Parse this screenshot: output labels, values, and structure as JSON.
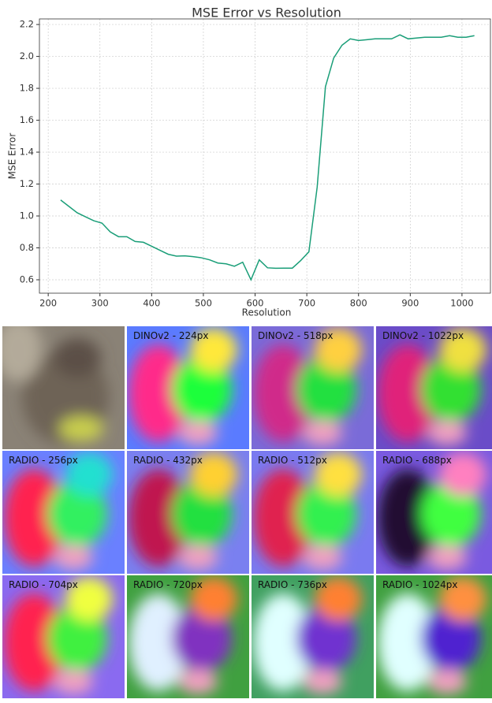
{
  "chart_data": {
    "type": "line",
    "title": "MSE Error vs Resolution",
    "x_label": "Resolution",
    "y_label": "MSE Error",
    "x": [
      224,
      240,
      256,
      272,
      288,
      304,
      320,
      336,
      352,
      368,
      384,
      400,
      416,
      432,
      448,
      464,
      480,
      496,
      512,
      528,
      544,
      560,
      576,
      592,
      608,
      624,
      640,
      656,
      672,
      688,
      704,
      720,
      736,
      752,
      768,
      784,
      800,
      816,
      832,
      848,
      864,
      880,
      896,
      912,
      928,
      944,
      960,
      976,
      992,
      1008,
      1024
    ],
    "series": [
      {
        "name": "MSE Error",
        "color": "#1a9e78",
        "values": [
          1.1,
          1.06,
          1.02,
          0.995,
          0.97,
          0.955,
          0.9,
          0.87,
          0.87,
          0.84,
          0.835,
          0.81,
          0.785,
          0.76,
          0.748,
          0.75,
          0.745,
          0.738,
          0.725,
          0.705,
          0.7,
          0.685,
          0.71,
          0.6,
          0.725,
          0.675,
          0.672,
          0.673,
          0.673,
          0.72,
          0.775,
          1.18,
          1.81,
          1.99,
          2.07,
          2.11,
          2.1,
          2.105,
          2.11,
          2.11,
          2.11,
          2.135,
          2.11,
          2.115,
          2.12,
          2.12,
          2.12,
          2.13,
          2.12,
          2.12,
          2.13
        ]
      }
    ],
    "xlim": [
      183,
      1055
    ],
    "ylim": [
      0.516,
      2.235
    ],
    "xticks": [
      200,
      300,
      400,
      500,
      600,
      700,
      800,
      900,
      1000
    ],
    "yticks": [
      {
        "value": 0.6,
        "label": "0.6"
      },
      {
        "value": 0.8,
        "label": "0.8"
      },
      {
        "value": 1.0,
        "label": "1.0"
      },
      {
        "value": 1.2,
        "label": "1.2"
      },
      {
        "value": 1.4,
        "label": "1.4"
      },
      {
        "value": 1.6,
        "label": "1.6"
      },
      {
        "value": 1.8,
        "label": "1.8"
      },
      {
        "value": 2.0,
        "label": "2.0"
      },
      {
        "value": 2.2,
        "label": "2.2"
      }
    ],
    "grid": true
  },
  "panels": [
    "DINOv2 - 224px",
    "DINOv2 - 518px",
    "DINOv2 - 1022px",
    "RADIO - 256px",
    "RADIO - 432px",
    "RADIO - 512px",
    "RADIO - 688px",
    "RADIO - 704px",
    "RADIO - 720px",
    "RADIO - 736px",
    "RADIO - 1024px"
  ]
}
